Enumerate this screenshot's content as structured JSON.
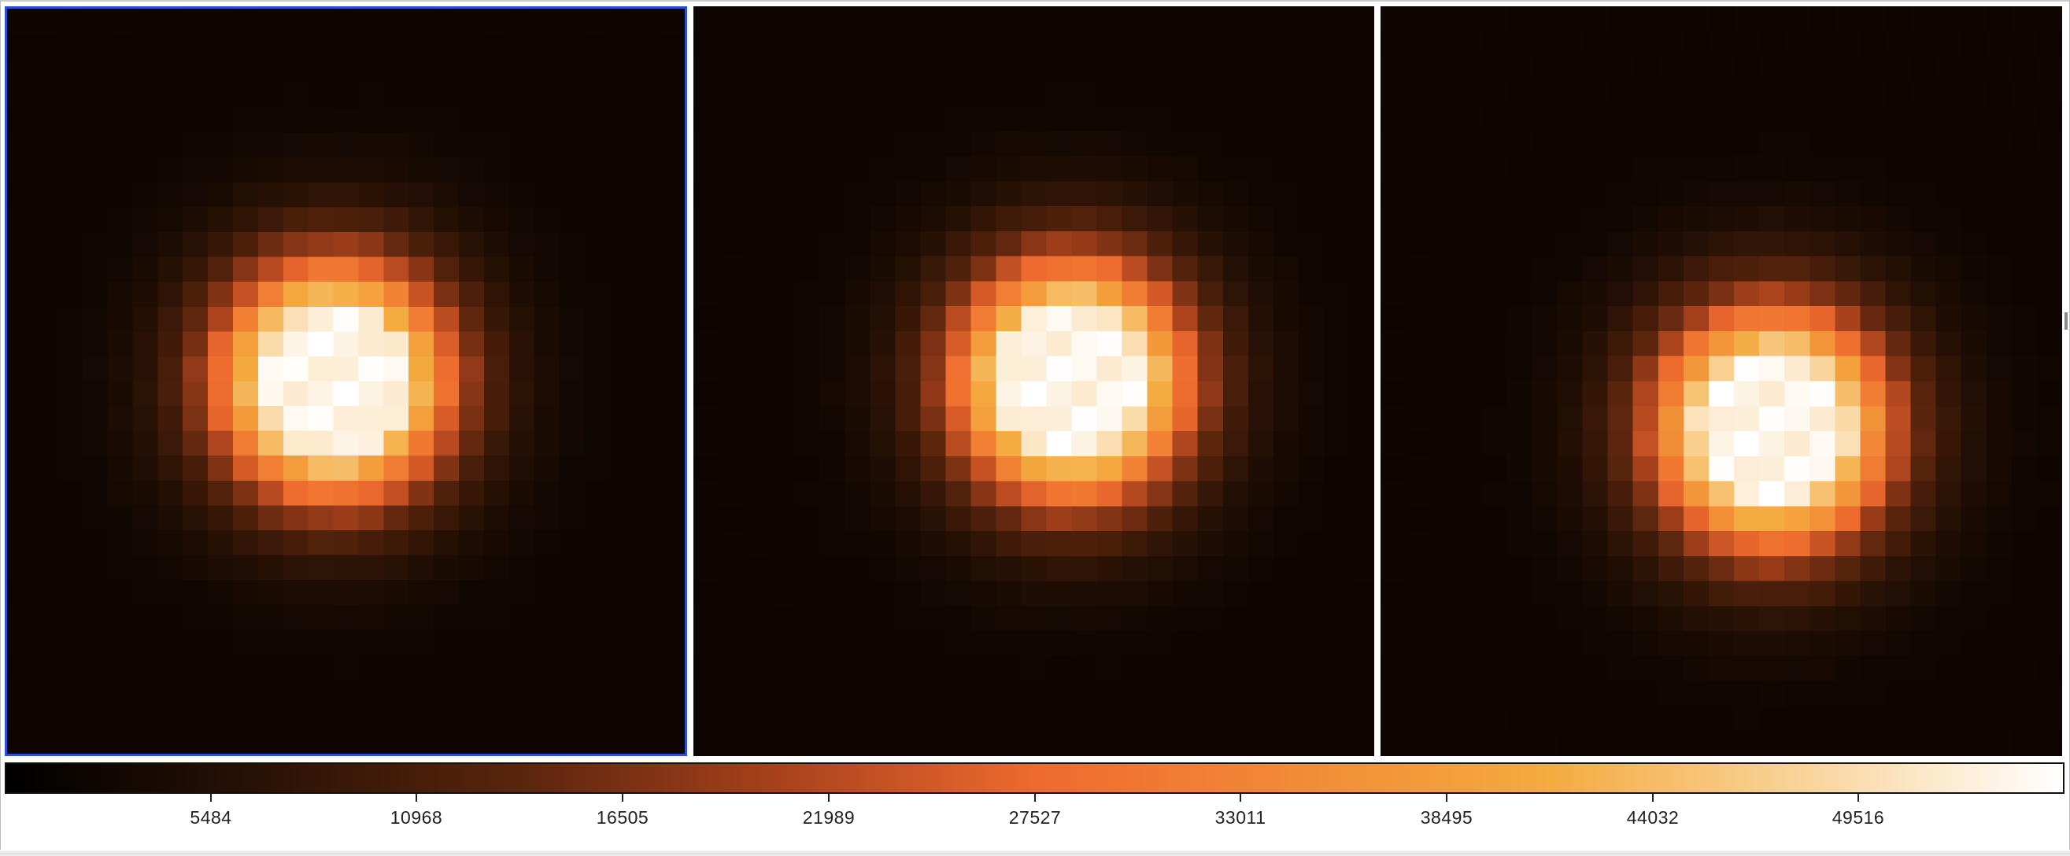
{
  "viewer": {
    "frames": [
      {
        "id": "frame-1",
        "active": true,
        "center_col": 12.5,
        "center_row": 14.5,
        "radius": 2.6
      },
      {
        "id": "frame-2",
        "active": false,
        "center_col": 14.5,
        "center_row": 14.5,
        "radius": 2.6
      },
      {
        "id": "frame-3",
        "active": false,
        "center_col": 15.0,
        "center_row": 16.4,
        "radius": 2.6
      }
    ],
    "grid_cols": 27,
    "grid_rows": 30,
    "colormap": "heat",
    "colors": {
      "active_frame_border": "#2a50e0",
      "colormap_stops": [
        "#000000",
        "#2a1205",
        "#5a250d",
        "#a8411c",
        "#ee6a2e",
        "#f28a36",
        "#f4ab40",
        "#f9d49b",
        "#ffffff"
      ]
    }
  },
  "colorbar": {
    "ticks": [
      {
        "label": "5484",
        "fraction": 0.1
      },
      {
        "label": "10968",
        "fraction": 0.2
      },
      {
        "label": "16505",
        "fraction": 0.3
      },
      {
        "label": "21989",
        "fraction": 0.4
      },
      {
        "label": "27527",
        "fraction": 0.5
      },
      {
        "label": "33011",
        "fraction": 0.6
      },
      {
        "label": "38495",
        "fraction": 0.7
      },
      {
        "label": "44032",
        "fraction": 0.8
      },
      {
        "label": "49516",
        "fraction": 0.9
      }
    ]
  }
}
